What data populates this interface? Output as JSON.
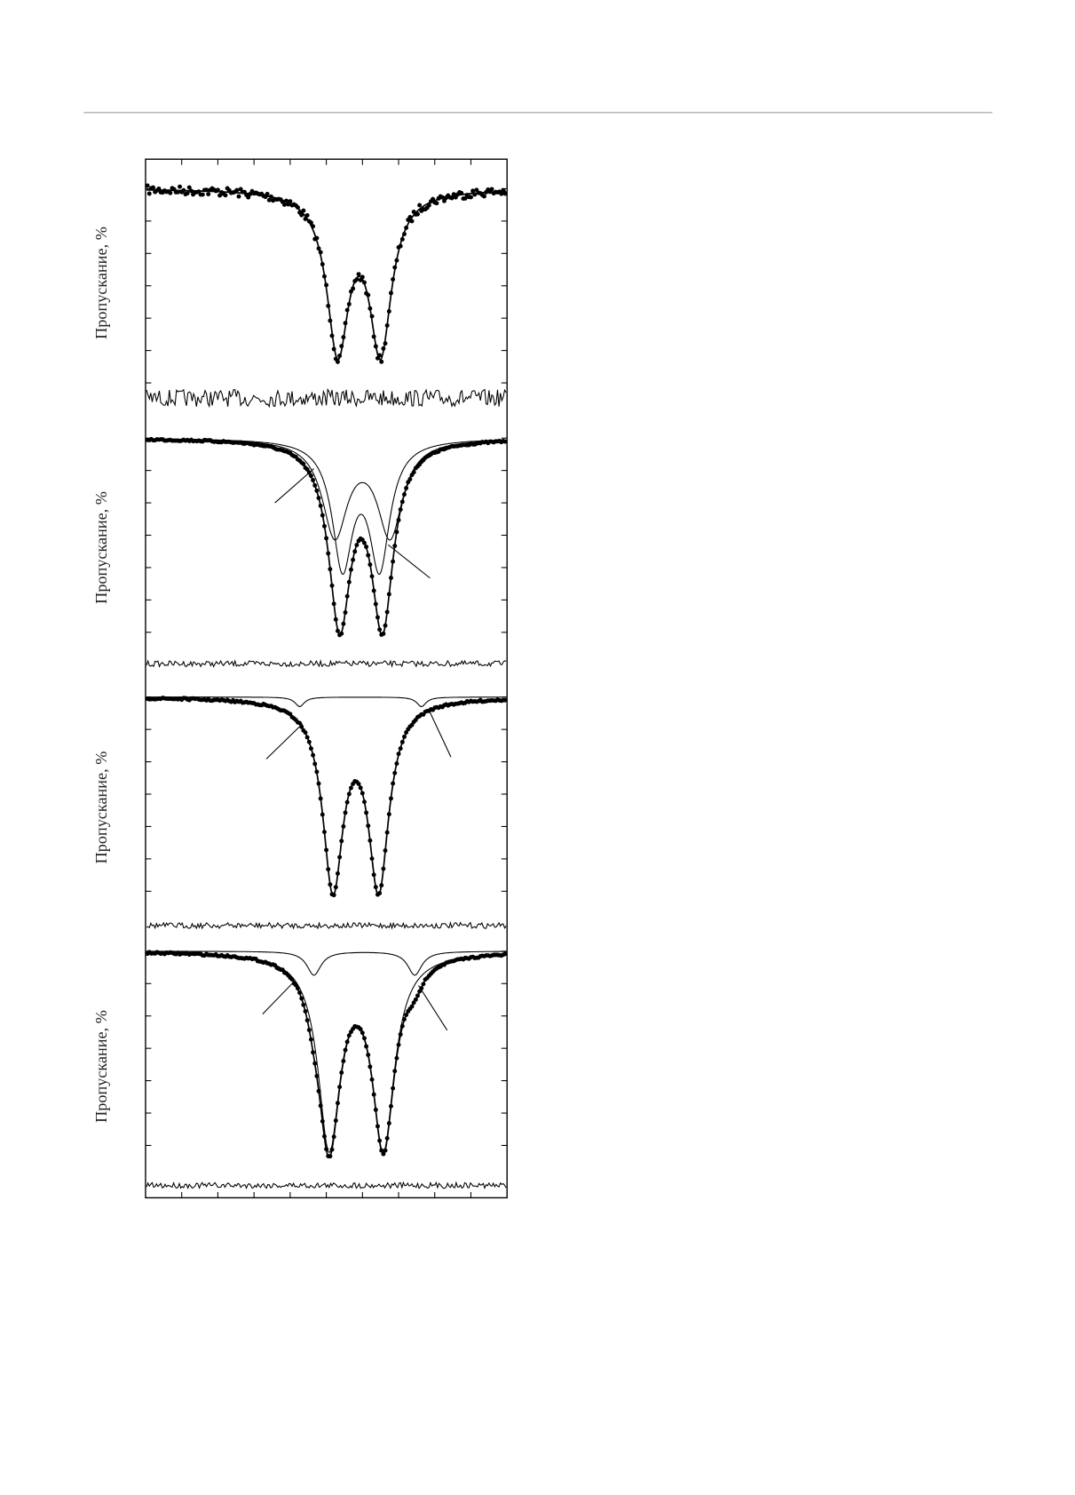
{
  "figure": {
    "y_labels": [
      "Пропускание, %",
      "Пропускание, %",
      "Пропускание, %",
      "Пропускание, %"
    ]
  }
}
